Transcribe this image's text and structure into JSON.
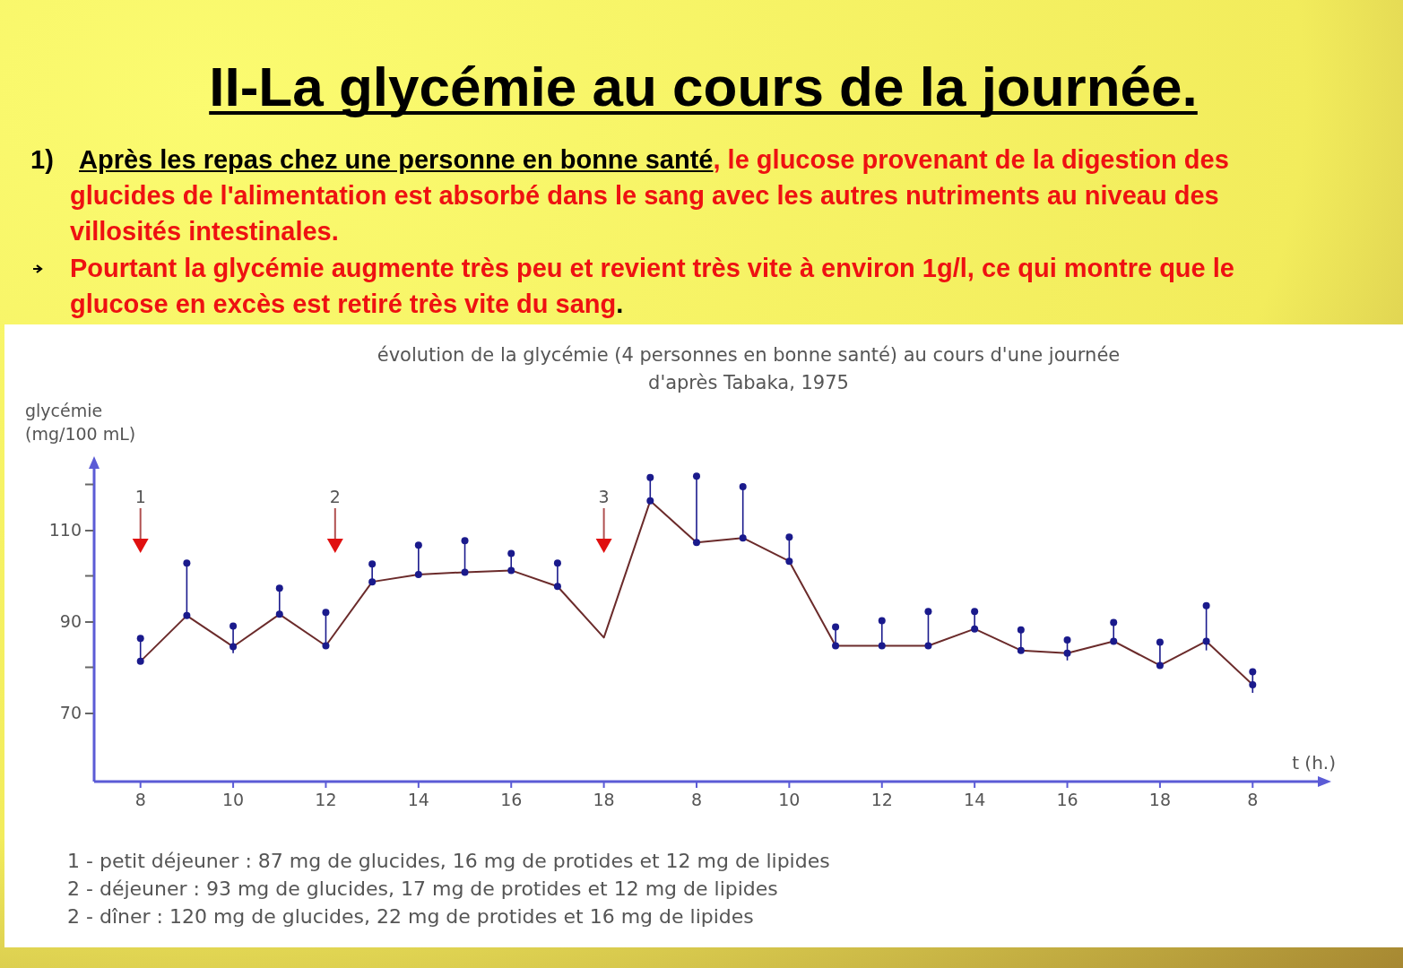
{
  "chart_data": {
    "type": "line",
    "title": "II-La glycémie au cours de la journée.",
    "subtitle": "évolution de la glycémie (4 personnes en bonne santé) au cours d'une journée",
    "xlabel": "t (h.)",
    "ylabel": "glycémie\n(mg/100 mL)",
    "annotations": [
      "1)",
      "Après les repas chez une personne en bonne santé",
      ", le glucose provenant de la digestion des glucides de l'alimentation est absorbé dans le sang avec les autres nutriments au niveau des villosités intestinales.",
      "Pourtant la glycémie augmente très peu et revient très vite à environ 1g/l, ce qui montre que le glucose en excès est retiré très vite du sang",
      ".",
      "d'après Tabaka, 1975",
      "1 - petit déjeuner : 87 mg de glucides, 16 mg de protides et 12 mg de lipides",
      "2 - déjeuner : 93 mg de glucides, 17 mg de protides et 12 mg de lipides",
      "2 - dîner : 120 mg de glucides, 22 mg de protides et 16 mg de lipides",
      "1",
      "2",
      "3"
    ],
    "categories": [
      "8",
      null,
      "10",
      null,
      "12",
      null,
      "14",
      null,
      "16",
      null,
      "18",
      null,
      "8",
      null,
      "10",
      null,
      "12",
      null,
      "14",
      null,
      "16",
      null,
      "18",
      null,
      "8"
    ],
    "series": [
      {
        "color": "#6b2b2b",
        "values": [
          81.3,
          91.3,
          84.5,
          91.6,
          84.7,
          98.7,
          100.3,
          100.8,
          101.2,
          97.7,
          86.5,
          116.4,
          107.3,
          108.3,
          103.2,
          84.7,
          84.7,
          84.7,
          88.4,
          83.7,
          83.1,
          85.7,
          80.4,
          85.7,
          76.2
        ],
        "errors": [
          [
            81.3,
            86.3
          ],
          [
            91.3,
            102.8
          ],
          [
            83.1,
            89
          ],
          [
            91.6,
            97.3
          ],
          [
            84.7,
            92
          ],
          [
            98.7,
            102.6
          ],
          [
            100.3,
            106.7
          ],
          [
            100.8,
            107.7
          ],
          [
            101.2,
            104.9
          ],
          [
            97.7,
            102.8
          ],
          null,
          [
            116.4,
            121.5
          ],
          [
            107.3,
            121.8
          ],
          [
            108.3,
            119.5
          ],
          [
            103.2,
            108.5
          ],
          [
            84.7,
            88.8
          ],
          [
            84.7,
            90.2
          ],
          [
            84.7,
            92.2
          ],
          [
            88.4,
            92.2
          ],
          [
            83.7,
            88.2
          ],
          [
            81.5,
            86
          ],
          [
            85.7,
            89.8
          ],
          [
            80.4,
            85.5
          ],
          [
            83.7,
            93.5
          ],
          [
            74.4,
            79
          ]
        ]
      },
      {
        "type": "scatter",
        "color": "#1a1a8c",
        "values": [
          86.3,
          102.8,
          89,
          97.3,
          92,
          102.6,
          106.7,
          107.7,
          104.9,
          102.8,
          null,
          121.5,
          121.8,
          119.5,
          108.5,
          88.8,
          90.2,
          92.2,
          92.2,
          88.2,
          86,
          89.8,
          85.5,
          93.5,
          79
        ]
      }
    ],
    "ylim": [
      55,
      125
    ],
    "yticks": [
      70,
      90,
      110
    ],
    "marker": "circle",
    "grid": false
  }
}
